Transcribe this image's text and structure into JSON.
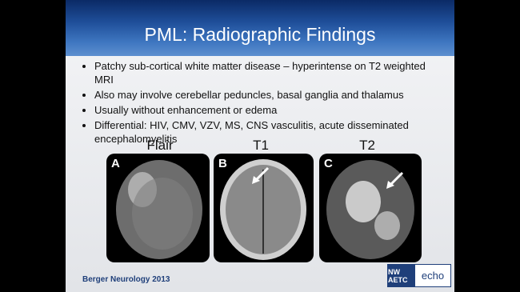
{
  "header": {
    "title": "PML:  Radiographic Findings"
  },
  "bullets": [
    "Patchy sub-cortical white matter disease – hyperintense on T2 weighted MRI",
    "Also may involve cerebellar peduncles, basal ganglia and thalamus",
    "Usually without enhancement or edema",
    "Differential:  HIV, CMV, VZV, MS, CNS vasculitis, acute disseminated encephalomyelitis"
  ],
  "images": [
    {
      "caption": "Flair",
      "letter": "A"
    },
    {
      "caption": "T1",
      "letter": "B"
    },
    {
      "caption": "T2",
      "letter": "C"
    }
  ],
  "footer": {
    "citation": "Berger Neurology 2013",
    "logo_left": "NW AETC",
    "logo_right": "echo"
  }
}
